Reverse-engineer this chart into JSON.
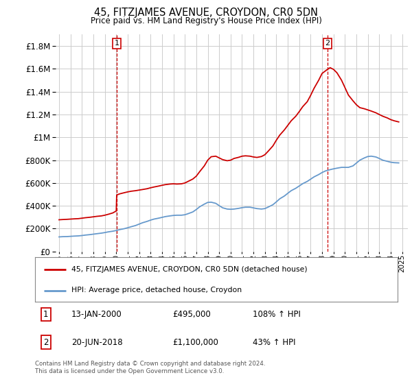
{
  "title": "45, FITZJAMES AVENUE, CROYDON, CR0 5DN",
  "subtitle": "Price paid vs. HM Land Registry's House Price Index (HPI)",
  "footer": "Contains HM Land Registry data © Crown copyright and database right 2024.\nThis data is licensed under the Open Government Licence v3.0.",
  "legend_line1": "45, FITZJAMES AVENUE, CROYDON, CR0 5DN (detached house)",
  "legend_line2": "HPI: Average price, detached house, Croydon",
  "annotation1_label": "1",
  "annotation1_date": "13-JAN-2000",
  "annotation1_price": "£495,000",
  "annotation1_hpi": "108% ↑ HPI",
  "annotation2_label": "2",
  "annotation2_date": "20-JUN-2018",
  "annotation2_price": "£1,100,000",
  "annotation2_hpi": "43% ↑ HPI",
  "red_color": "#cc0000",
  "blue_color": "#6699cc",
  "background_color": "#ffffff",
  "grid_color": "#cccccc",
  "ylim": [
    0,
    1900000
  ],
  "xlim_start": 1994.7,
  "xlim_end": 2025.5,
  "sale1_x": 2000.04,
  "sale1_y": 495000,
  "sale2_x": 2018.47,
  "sale2_y": 1100000,
  "red_line": {
    "x": [
      1995.0,
      1995.3,
      1995.7,
      1996.0,
      1996.3,
      1996.7,
      1997.0,
      1997.3,
      1997.7,
      1998.0,
      1998.3,
      1998.7,
      1999.0,
      1999.3,
      1999.7,
      2000.0,
      2000.04,
      2000.3,
      2000.7,
      2001.0,
      2001.3,
      2001.7,
      2002.0,
      2002.3,
      2002.7,
      2003.0,
      2003.3,
      2003.7,
      2004.0,
      2004.3,
      2004.7,
      2005.0,
      2005.3,
      2005.7,
      2006.0,
      2006.3,
      2006.7,
      2007.0,
      2007.3,
      2007.7,
      2008.0,
      2008.3,
      2008.7,
      2009.0,
      2009.3,
      2009.7,
      2010.0,
      2010.3,
      2010.7,
      2011.0,
      2011.3,
      2011.7,
      2012.0,
      2012.3,
      2012.7,
      2013.0,
      2013.3,
      2013.7,
      2014.0,
      2014.3,
      2014.7,
      2015.0,
      2015.3,
      2015.7,
      2016.0,
      2016.3,
      2016.7,
      2017.0,
      2017.3,
      2017.7,
      2018.0,
      2018.47,
      2018.7,
      2019.0,
      2019.3,
      2019.7,
      2020.0,
      2020.3,
      2020.7,
      2021.0,
      2021.3,
      2021.7,
      2022.0,
      2022.3,
      2022.7,
      2023.0,
      2023.3,
      2023.7,
      2024.0,
      2024.3,
      2024.7
    ],
    "y": [
      278000,
      280000,
      282000,
      284000,
      286000,
      288000,
      292000,
      296000,
      300000,
      304000,
      308000,
      312000,
      318000,
      326000,
      338000,
      355000,
      495000,
      505000,
      515000,
      522000,
      528000,
      533000,
      538000,
      543000,
      550000,
      558000,
      565000,
      573000,
      580000,
      586000,
      591000,
      593000,
      591000,
      593000,
      600000,
      615000,
      635000,
      660000,
      700000,
      750000,
      800000,
      830000,
      835000,
      820000,
      805000,
      795000,
      800000,
      815000,
      825000,
      835000,
      838000,
      835000,
      828000,
      824000,
      832000,
      848000,
      880000,
      925000,
      975000,
      1020000,
      1065000,
      1105000,
      1145000,
      1185000,
      1225000,
      1268000,
      1312000,
      1368000,
      1430000,
      1500000,
      1560000,
      1595000,
      1610000,
      1595000,
      1565000,
      1500000,
      1435000,
      1370000,
      1320000,
      1285000,
      1260000,
      1250000,
      1240000,
      1230000,
      1215000,
      1200000,
      1185000,
      1170000,
      1155000,
      1145000,
      1135000
    ]
  },
  "blue_line": {
    "x": [
      1995.0,
      1995.3,
      1995.7,
      1996.0,
      1996.3,
      1996.7,
      1997.0,
      1997.3,
      1997.7,
      1998.0,
      1998.3,
      1998.7,
      1999.0,
      1999.3,
      1999.7,
      2000.0,
      2000.3,
      2000.7,
      2001.0,
      2001.3,
      2001.7,
      2002.0,
      2002.3,
      2002.7,
      2003.0,
      2003.3,
      2003.7,
      2004.0,
      2004.3,
      2004.7,
      2005.0,
      2005.3,
      2005.7,
      2006.0,
      2006.3,
      2006.7,
      2007.0,
      2007.3,
      2007.7,
      2008.0,
      2008.3,
      2008.7,
      2009.0,
      2009.3,
      2009.7,
      2010.0,
      2010.3,
      2010.7,
      2011.0,
      2011.3,
      2011.7,
      2012.0,
      2012.3,
      2012.7,
      2013.0,
      2013.3,
      2013.7,
      2014.0,
      2014.3,
      2014.7,
      2015.0,
      2015.3,
      2015.7,
      2016.0,
      2016.3,
      2016.7,
      2017.0,
      2017.3,
      2017.7,
      2018.0,
      2018.3,
      2018.7,
      2019.0,
      2019.3,
      2019.7,
      2020.0,
      2020.3,
      2020.7,
      2021.0,
      2021.3,
      2021.7,
      2022.0,
      2022.3,
      2022.7,
      2023.0,
      2023.3,
      2023.7,
      2024.0,
      2024.3,
      2024.7
    ],
    "y": [
      128000,
      130000,
      131000,
      133000,
      135000,
      137000,
      140000,
      144000,
      148000,
      152000,
      156000,
      161000,
      166000,
      172000,
      178000,
      184000,
      192000,
      200000,
      208000,
      217000,
      228000,
      240000,
      252000,
      264000,
      275000,
      284000,
      292000,
      299000,
      306000,
      312000,
      316000,
      318000,
      318000,
      322000,
      332000,
      347000,
      368000,
      392000,
      415000,
      430000,
      432000,
      422000,
      402000,
      383000,
      372000,
      370000,
      372000,
      378000,
      384000,
      388000,
      388000,
      382000,
      376000,
      372000,
      376000,
      390000,
      410000,
      435000,
      462000,
      486000,
      510000,
      533000,
      554000,
      574000,
      594000,
      614000,
      634000,
      654000,
      674000,
      692000,
      706000,
      717000,
      724000,
      730000,
      737000,
      737000,
      737000,
      750000,
      775000,
      800000,
      820000,
      832000,
      835000,
      828000,
      815000,
      800000,
      790000,
      782000,
      778000,
      776000
    ]
  }
}
